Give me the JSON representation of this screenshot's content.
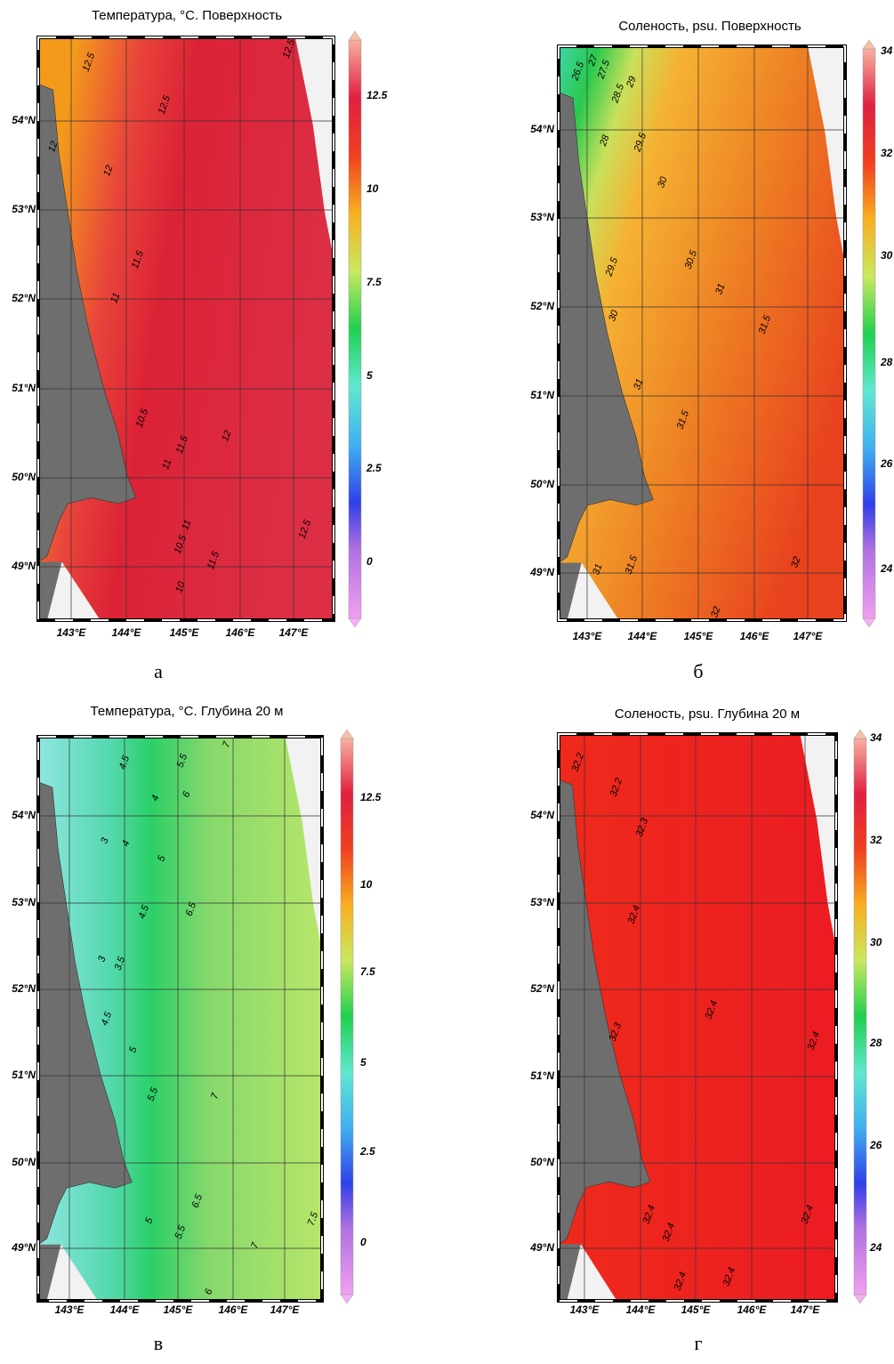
{
  "panels": [
    {
      "title": "Температура, °C. Поверхность",
      "letter": "а",
      "colorbar_ticks": [
        "12.5",
        "10",
        "7.5",
        "5",
        "2.5",
        "0"
      ],
      "lat_labels": [
        "54°N",
        "53°N",
        "52°N",
        "51°N",
        "50°N",
        "49°N"
      ],
      "lon_labels": [
        "143°E",
        "144°E",
        "145°E",
        "146°E",
        "147°E"
      ],
      "contour_labels": [
        "12.5",
        "12.5",
        "12.5",
        "12",
        "12",
        "11.5",
        "11",
        "10.5",
        "11",
        "11.5",
        "12",
        "11",
        "10.5",
        "10",
        "11.5",
        "12.5"
      ]
    },
    {
      "title": "Соленость, psu. Поверхность",
      "letter": "б",
      "colorbar_ticks": [
        "34",
        "32",
        "30",
        "28",
        "26",
        "24"
      ],
      "lat_labels": [
        "54°N",
        "53°N",
        "52°N",
        "51°N",
        "50°N",
        "49°N"
      ],
      "lon_labels": [
        "143°E",
        "144°E",
        "145°E",
        "146°E",
        "147°E"
      ],
      "contour_labels": [
        "26.5",
        "27",
        "27.5",
        "28.5",
        "29",
        "28",
        "29.5",
        "30",
        "29.5",
        "30.5",
        "30",
        "31",
        "31.5",
        "31",
        "31.5",
        "31",
        "31.5",
        "32",
        "32"
      ]
    },
    {
      "title": "Температура, °C. Глубина 20 м",
      "letter": "в",
      "colorbar_ticks": [
        "12.5",
        "10",
        "7.5",
        "5",
        "2.5",
        "0"
      ],
      "lat_labels": [
        "54°N",
        "53°N",
        "52°N",
        "51°N",
        "50°N",
        "49°N"
      ],
      "lon_labels": [
        "143°E",
        "144°E",
        "145°E",
        "146°E",
        "147°E"
      ],
      "contour_labels": [
        "4.5",
        "5.5",
        "7",
        "4",
        "6",
        "3",
        "4",
        "5",
        "6.5",
        "4.5",
        "3.5",
        "3",
        "4.5",
        "5",
        "5.5",
        "7",
        "6.5",
        "5",
        "5.5",
        "7.5",
        "7",
        "6"
      ]
    },
    {
      "title": "Соленость, psu. Глубина 20 м",
      "letter": "г",
      "colorbar_ticks": [
        "34",
        "32",
        "30",
        "28",
        "26",
        "24"
      ],
      "lat_labels": [
        "54°N",
        "53°N",
        "52°N",
        "51°N",
        "50°N",
        "49°N"
      ],
      "lon_labels": [
        "143°E",
        "144°E",
        "145°E",
        "146°E",
        "147°E"
      ],
      "contour_labels": [
        "32.2",
        "32.2",
        "32.3",
        "32.4",
        "32.4",
        "32.3",
        "32.4",
        "32.4",
        "32.4",
        "32.4",
        "32.4",
        "32.4"
      ]
    }
  ]
}
